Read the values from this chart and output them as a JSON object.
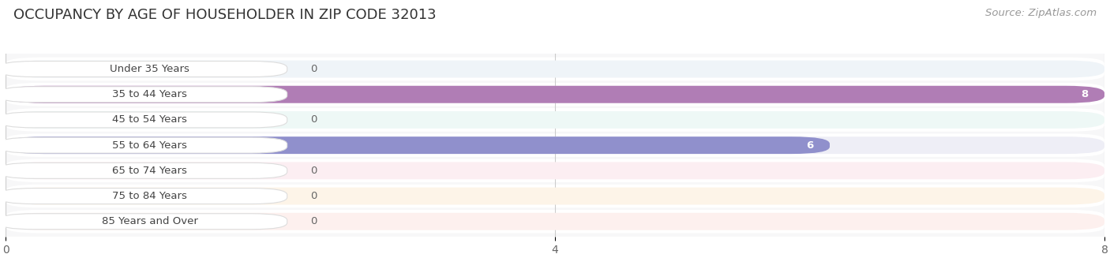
{
  "title": "OCCUPANCY BY AGE OF HOUSEHOLDER IN ZIP CODE 32013",
  "source": "Source: ZipAtlas.com",
  "categories": [
    "Under 35 Years",
    "35 to 44 Years",
    "45 to 54 Years",
    "55 to 64 Years",
    "65 to 74 Years",
    "75 to 84 Years",
    "85 Years and Over"
  ],
  "values": [
    0,
    8,
    0,
    6,
    0,
    0,
    0
  ],
  "bar_colors": [
    "#a8cfe8",
    "#b07db5",
    "#7ecec4",
    "#9090cc",
    "#f4a0b0",
    "#f5c890",
    "#f0a090"
  ],
  "bar_bg_colors": [
    "#eff4f8",
    "#f4eef6",
    "#eef8f6",
    "#eeeef6",
    "#fceef2",
    "#fdf4e8",
    "#fdf0ee"
  ],
  "label_bg_color": "#ffffff",
  "xlim": [
    0,
    8
  ],
  "xticks": [
    0,
    4,
    8
  ],
  "background_color": "#ffffff",
  "plot_bg_color": "#f7f7f8",
  "title_fontsize": 13,
  "source_fontsize": 9.5,
  "label_fontsize": 9.5,
  "value_fontsize": 9.5,
  "tick_fontsize": 10
}
